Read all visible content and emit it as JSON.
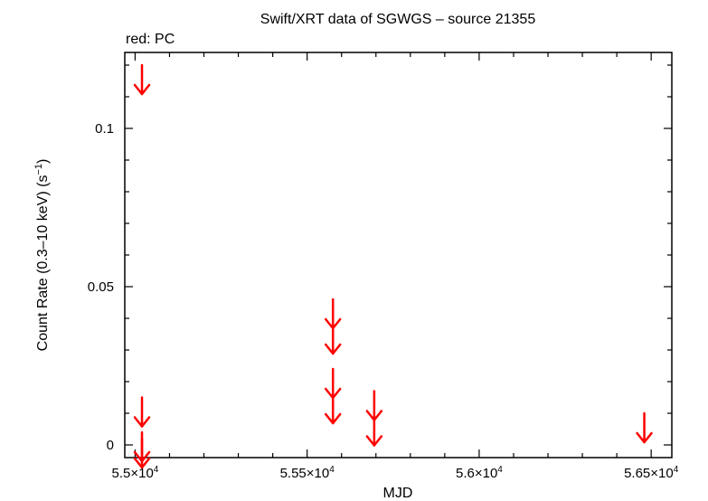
{
  "chart_data": {
    "type": "scatter",
    "title": "Swift/XRT data of SGWGS – source 21355",
    "subtitle": "red: PC",
    "xlabel": "MJD",
    "ylabel": "Count Rate (0.3–10 keV) (s",
    "ylabel_sup": "−1",
    "ylabel_end": ")",
    "xlim": [
      54970,
      56560
    ],
    "ylim": [
      -0.004,
      0.124
    ],
    "x_ticks": [
      {
        "value": 55000,
        "mantissa": "5.5×10",
        "exp": "4"
      },
      {
        "value": 55500,
        "mantissa": "5.55×10",
        "exp": "4"
      },
      {
        "value": 56000,
        "mantissa": "5.6×10",
        "exp": "4"
      },
      {
        "value": 56500,
        "mantissa": "5.65×10",
        "exp": "4"
      }
    ],
    "y_ticks": [
      {
        "value": 0,
        "label": "0"
      },
      {
        "value": 0.05,
        "label": "0.05"
      },
      {
        "value": 0.1,
        "label": "0.1"
      }
    ],
    "series": [
      {
        "name": "PC",
        "color": "#ff0000",
        "marker": "upper-limit-arrow",
        "points": [
          {
            "x": 55020,
            "y": 0.12
          },
          {
            "x": 55020,
            "y": 0.015
          },
          {
            "x": 55020,
            "y": 0.004
          },
          {
            "x": 55020,
            "y": 0.002
          },
          {
            "x": 55575,
            "y": 0.046
          },
          {
            "x": 55575,
            "y": 0.038
          },
          {
            "x": 55575,
            "y": 0.024
          },
          {
            "x": 55575,
            "y": 0.016
          },
          {
            "x": 55695,
            "y": 0.017
          },
          {
            "x": 55695,
            "y": 0.009
          },
          {
            "x": 56480,
            "y": 0.01
          }
        ]
      }
    ],
    "grid": false
  }
}
